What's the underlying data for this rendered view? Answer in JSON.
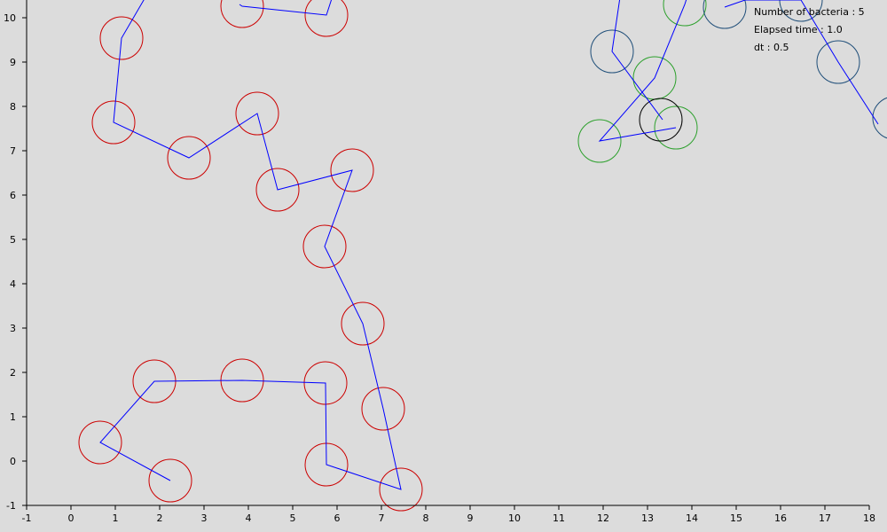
{
  "info": {
    "bacteria_count_line": "Number of bacteria : 5",
    "elapsed_time_line": "Elapsed time : 1.0",
    "dt_line": "dt : 0.5"
  },
  "colors": {
    "background": "#dcdcdc",
    "axis": "#000000",
    "path": "#0000ff",
    "red": "#cc0000",
    "navy": "#1f4e79",
    "green": "#2ca02c",
    "black": "#000000"
  },
  "chart_data": {
    "type": "scatter",
    "title": "",
    "xlabel": "",
    "ylabel": "",
    "xlim": [
      -1,
      18
    ],
    "ylim": [
      -1,
      10
    ],
    "x_ticks": [
      -1,
      0,
      1,
      2,
      3,
      4,
      5,
      6,
      7,
      8,
      9,
      10,
      11,
      12,
      13,
      14,
      15,
      16,
      17,
      18
    ],
    "y_ticks": [
      -1,
      0,
      1,
      2,
      3,
      4,
      5,
      6,
      7,
      8,
      9,
      10
    ],
    "grid": false,
    "circle_radius": 0.48,
    "series": [
      {
        "color": "red",
        "path": [
          [
            2.24,
            -0.44
          ],
          [
            0.66,
            0.42
          ],
          [
            1.88,
            1.8
          ],
          [
            3.86,
            1.82
          ],
          [
            5.74,
            1.76
          ],
          [
            5.76,
            -0.08
          ],
          [
            7.44,
            -0.64
          ],
          [
            7.04,
            1.18
          ],
          [
            6.58,
            3.1
          ],
          [
            5.72,
            4.84
          ],
          [
            6.34,
            6.56
          ],
          [
            4.66,
            6.12
          ],
          [
            4.2,
            7.84
          ],
          [
            2.66,
            6.84
          ],
          [
            0.96,
            7.64
          ],
          [
            1.14,
            9.54
          ],
          [
            1.7,
            10.5
          ]
        ],
        "circles": [
          [
            2.24,
            -0.44
          ],
          [
            0.66,
            0.42
          ],
          [
            1.88,
            1.8
          ],
          [
            3.86,
            1.82
          ],
          [
            5.74,
            1.76
          ],
          [
            5.76,
            -0.08
          ],
          [
            7.44,
            -0.64
          ],
          [
            7.04,
            1.18
          ],
          [
            6.58,
            3.1
          ],
          [
            5.72,
            4.84
          ],
          [
            6.34,
            6.56
          ],
          [
            4.66,
            6.12
          ],
          [
            4.2,
            7.84
          ],
          [
            2.66,
            6.84
          ],
          [
            0.96,
            7.64
          ],
          [
            1.14,
            9.54
          ]
        ]
      },
      {
        "color": "red",
        "path": [
          [
            3.8,
            10.3
          ],
          [
            3.86,
            10.26
          ],
          [
            5.76,
            10.06
          ],
          [
            6.0,
            10.8
          ]
        ],
        "circles": [
          [
            3.86,
            10.26
          ],
          [
            5.76,
            10.06
          ]
        ]
      },
      {
        "color": "navy",
        "path": [
          [
            13.34,
            7.7
          ],
          [
            12.2,
            9.24
          ],
          [
            12.4,
            10.6
          ]
        ],
        "circles": [
          [
            12.2,
            9.24
          ]
        ]
      },
      {
        "color": "green",
        "path": [
          [
            13.64,
            7.52
          ],
          [
            11.92,
            7.22
          ],
          [
            13.16,
            8.64
          ],
          [
            13.84,
            10.3
          ],
          [
            14.0,
            10.8
          ]
        ],
        "circles": [
          [
            13.64,
            7.52
          ],
          [
            11.92,
            7.22
          ],
          [
            13.16,
            8.64
          ],
          [
            13.84,
            10.3
          ]
        ]
      },
      {
        "color": "navy",
        "path": [
          [
            14.74,
            10.24
          ],
          [
            15.2,
            10.4
          ],
          [
            16.46,
            10.4
          ],
          [
            17.3,
            9.0
          ],
          [
            18.2,
            7.6
          ]
        ],
        "circles": [
          [
            14.74,
            10.24
          ],
          [
            16.46,
            10.4
          ],
          [
            17.3,
            9.0
          ],
          [
            18.56,
            7.74
          ]
        ]
      },
      {
        "color": "black",
        "path": [],
        "circles": [
          [
            13.3,
            7.7
          ]
        ]
      }
    ]
  }
}
